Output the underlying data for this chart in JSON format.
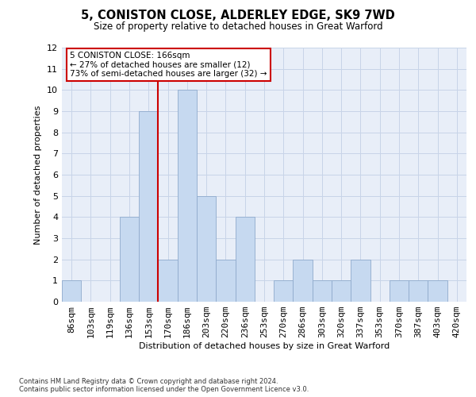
{
  "title": "5, CONISTON CLOSE, ALDERLEY EDGE, SK9 7WD",
  "subtitle": "Size of property relative to detached houses in Great Warford",
  "xlabel": "Distribution of detached houses by size in Great Warford",
  "ylabel": "Number of detached properties",
  "bar_labels": [
    "86sqm",
    "103sqm",
    "119sqm",
    "136sqm",
    "153sqm",
    "170sqm",
    "186sqm",
    "203sqm",
    "220sqm",
    "236sqm",
    "253sqm",
    "270sqm",
    "286sqm",
    "303sqm",
    "320sqm",
    "337sqm",
    "353sqm",
    "370sqm",
    "387sqm",
    "403sqm",
    "420sqm"
  ],
  "bar_values": [
    1,
    0,
    0,
    4,
    9,
    2,
    10,
    5,
    2,
    4,
    0,
    1,
    2,
    1,
    1,
    2,
    0,
    1,
    1,
    1,
    0
  ],
  "bar_color": "#c6d9f0",
  "bar_edgecolor": "#8faacc",
  "ylim": [
    0,
    12
  ],
  "yticks": [
    0,
    1,
    2,
    3,
    4,
    5,
    6,
    7,
    8,
    9,
    10,
    11,
    12
  ],
  "vline_x": 4.5,
  "vline_color": "#cc0000",
  "annotation_line1": "5 CONISTON CLOSE: 166sqm",
  "annotation_line2": "← 27% of detached houses are smaller (12)",
  "annotation_line3": "73% of semi-detached houses are larger (32) →",
  "annotation_box_facecolor": "#ffffff",
  "annotation_box_edgecolor": "#cc0000",
  "footnote1": "Contains HM Land Registry data © Crown copyright and database right 2024.",
  "footnote2": "Contains public sector information licensed under the Open Government Licence v3.0.",
  "grid_color": "#c8d4e8",
  "background_color": "#e8eef8"
}
